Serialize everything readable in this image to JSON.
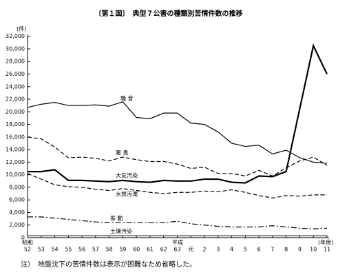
{
  "chart_data": {
    "type": "line",
    "title": "〔第１図〕　典型７公害の種類別苦情件数の推移",
    "y_unit": "(件)",
    "x_unit": "(年度)",
    "era_labels": [
      "昭和",
      "平成"
    ],
    "note": "注）　地盤沈下の苦情件数は表示が困難なため省略した。",
    "categories": [
      "52",
      "53",
      "54",
      "55",
      "56",
      "57",
      "58",
      "59",
      "60",
      "61",
      "62",
      "63",
      "元",
      "2",
      "3",
      "4",
      "5",
      "6",
      "7",
      "8",
      "9",
      "10",
      "11"
    ],
    "ylim": [
      0,
      32000
    ],
    "yticks": [
      0,
      {
        "value": 2000,
        "label": "2,000"
      },
      {
        "value": 4000,
        "label": "4,000"
      },
      {
        "value": 6000,
        "label": "6,000"
      },
      {
        "value": 8000,
        "label": "8,000"
      },
      {
        "value": 10000,
        "label": "10,000"
      },
      {
        "value": 12000,
        "label": "12,000"
      },
      {
        "value": 14000,
        "label": "14,000"
      },
      {
        "value": 16000,
        "label": "16,000"
      },
      {
        "value": 18000,
        "label": "18,000"
      },
      {
        "value": 20000,
        "label": "20,000"
      },
      {
        "value": 22000,
        "label": "22,000"
      },
      {
        "value": 24000,
        "label": "24,000"
      },
      {
        "value": 26000,
        "label": "26,000"
      },
      {
        "value": 28000,
        "label": "28,000"
      },
      {
        "value": 30000,
        "label": "30,000"
      },
      {
        "value": 32000,
        "label": "32,000"
      }
    ],
    "grid": false,
    "series": [
      {
        "name": "騒 音",
        "color": "#000",
        "width": 1.2,
        "style": "solid",
        "values": [
          20700,
          21200,
          21500,
          21000,
          21000,
          21100,
          20900,
          21600,
          19100,
          18900,
          19800,
          19800,
          18200,
          18000,
          16800,
          15000,
          14500,
          14700,
          13300,
          13900,
          12700,
          12000,
          11800
        ]
      },
      {
        "name": "悪 臭",
        "color": "#000",
        "width": 1.2,
        "style": "dashed",
        "values": [
          16000,
          15700,
          14400,
          12700,
          12800,
          12600,
          12200,
          12800,
          12400,
          12100,
          12100,
          11700,
          11000,
          11200,
          10200,
          10200,
          9800,
          10700,
          9800,
          11100,
          12200,
          12800,
          11500
        ]
      },
      {
        "name": "大気汚染",
        "color": "#000",
        "width": 2.2,
        "style": "solid",
        "values": [
          10500,
          10500,
          10800,
          9100,
          9100,
          9000,
          8900,
          9100,
          8900,
          8800,
          9100,
          9000,
          9000,
          9300,
          9300,
          8800,
          8700,
          9800,
          9700,
          10500,
          20500,
          30500,
          26000
        ]
      },
      {
        "name": "水質汚濁",
        "color": "#000",
        "width": 1.2,
        "style": "dashed",
        "values": [
          10200,
          9300,
          8400,
          8100,
          8000,
          7700,
          7500,
          7800,
          7500,
          7200,
          7000,
          7200,
          7200,
          7400,
          7300,
          7600,
          7200,
          6700,
          6300,
          6700,
          6600,
          6800,
          6800
        ]
      },
      {
        "name": "振 動",
        "color": "#000",
        "width": 1.2,
        "style": "dashdot",
        "values": [
          3300,
          3300,
          3100,
          2900,
          2700,
          2500,
          2400,
          2400,
          2400,
          2400,
          2400,
          2600,
          2200,
          2000,
          1800,
          1700,
          1700,
          1700,
          1900,
          1700,
          1500,
          1400,
          1500
        ]
      },
      {
        "name": "土壌汚染",
        "color": "#000",
        "width": 1,
        "style": "solid",
        "values": [
          300,
          300,
          300,
          300,
          300,
          300,
          300,
          300,
          300,
          300,
          300,
          300,
          300,
          300,
          300,
          300,
          300,
          300,
          300,
          300,
          300,
          300,
          300
        ]
      }
    ]
  }
}
